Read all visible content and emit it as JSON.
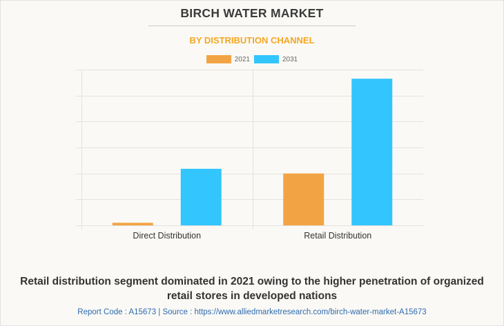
{
  "colors": {
    "series_2021": "#f2a444",
    "series_2031": "#33c5fd",
    "title": "#3b3b3b",
    "subtitle": "#f5a623",
    "source": "#2e6bb0"
  },
  "chart_data": {
    "type": "bar",
    "title": "BIRCH WATER MARKET",
    "subtitle": "BY DISTRIBUTION CHANNEL",
    "categories": [
      "Direct Distribution",
      "Retail Distribution"
    ],
    "series": [
      {
        "name": "2021",
        "values": [
          0.1,
          2.0
        ]
      },
      {
        "name": "2031",
        "values": [
          2.18,
          5.65
        ]
      }
    ],
    "xlabel": "",
    "ylabel": "",
    "ylim": [
      0,
      6
    ],
    "y_ticks_shown": false,
    "grid": true,
    "legend": "top-center"
  },
  "footer": {
    "caption": "Retail distribution segment dominated in 2021 owing to the higher penetration of organized retail stores in developed nations",
    "source": "Report Code : A15673  |  Source : https://www.alliedmarketresearch.com/birch-water-market-A15673"
  }
}
